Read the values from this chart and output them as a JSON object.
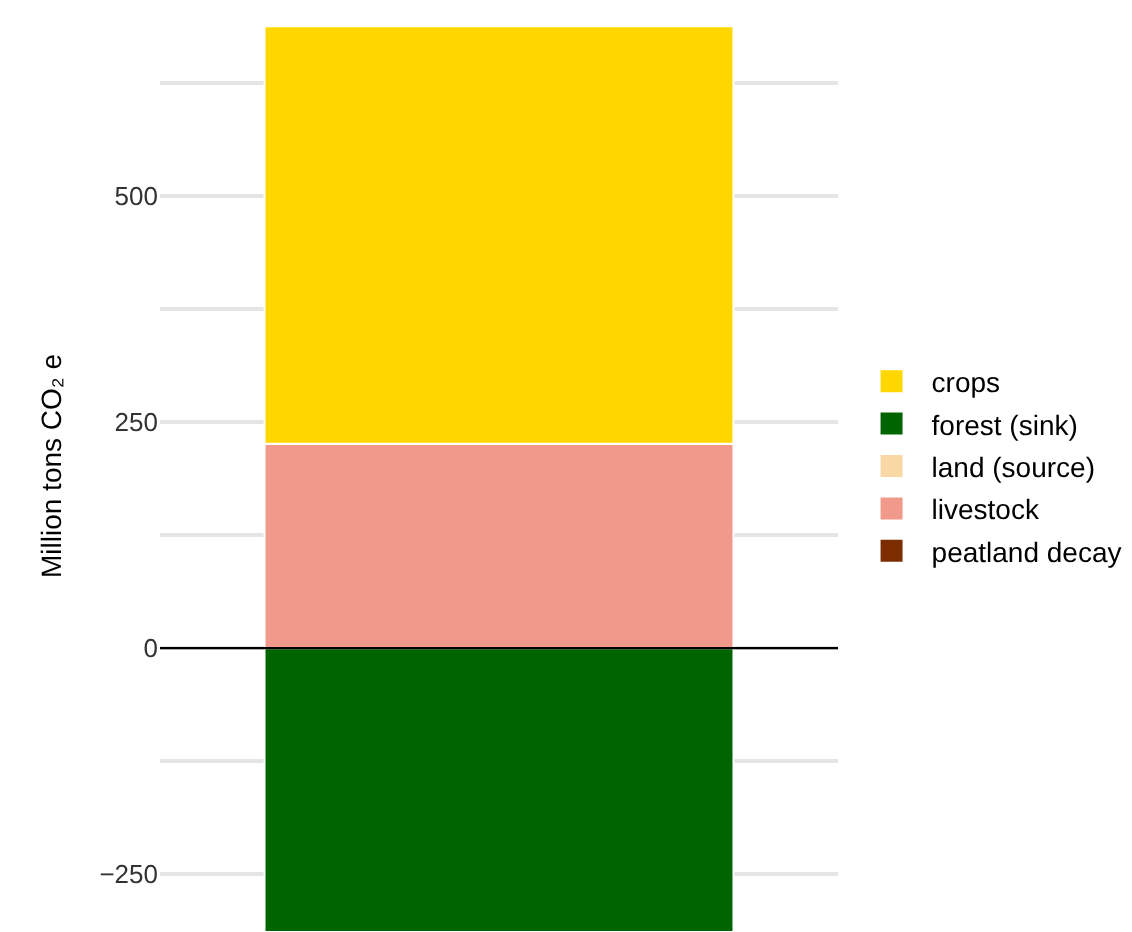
{
  "chart_data": {
    "type": "bar",
    "stacked": true,
    "ylabel": "Million tons CO₂ e",
    "categories": [
      null
    ],
    "series": [
      {
        "name": "peatland decay",
        "color": "#7b2d00",
        "values": [
          0
        ]
      },
      {
        "name": "livestock",
        "color": "#f1998a",
        "values": [
          226
        ]
      },
      {
        "name": "land (source)",
        "color": "#f9d8a6",
        "values": [
          0
        ]
      },
      {
        "name": "forest (sink)",
        "color": "#006400",
        "values": [
          -314
        ]
      },
      {
        "name": "crops",
        "color": "#ffd700",
        "values": [
          462
        ]
      }
    ],
    "ylim": [
      -314,
      717
    ],
    "yticks": [
      {
        "value": -250,
        "label": "−250"
      },
      {
        "value": -125,
        "label": null
      },
      0,
      {
        "value": 125,
        "label": null
      },
      250,
      {
        "value": 375,
        "label": null
      },
      500,
      {
        "value": 625,
        "label": null
      }
    ],
    "ref_lines": [
      {
        "axis": "y",
        "value": 0,
        "color": "#000000"
      }
    ],
    "grid": "y",
    "legend": "right",
    "tick_labels": "y"
  }
}
